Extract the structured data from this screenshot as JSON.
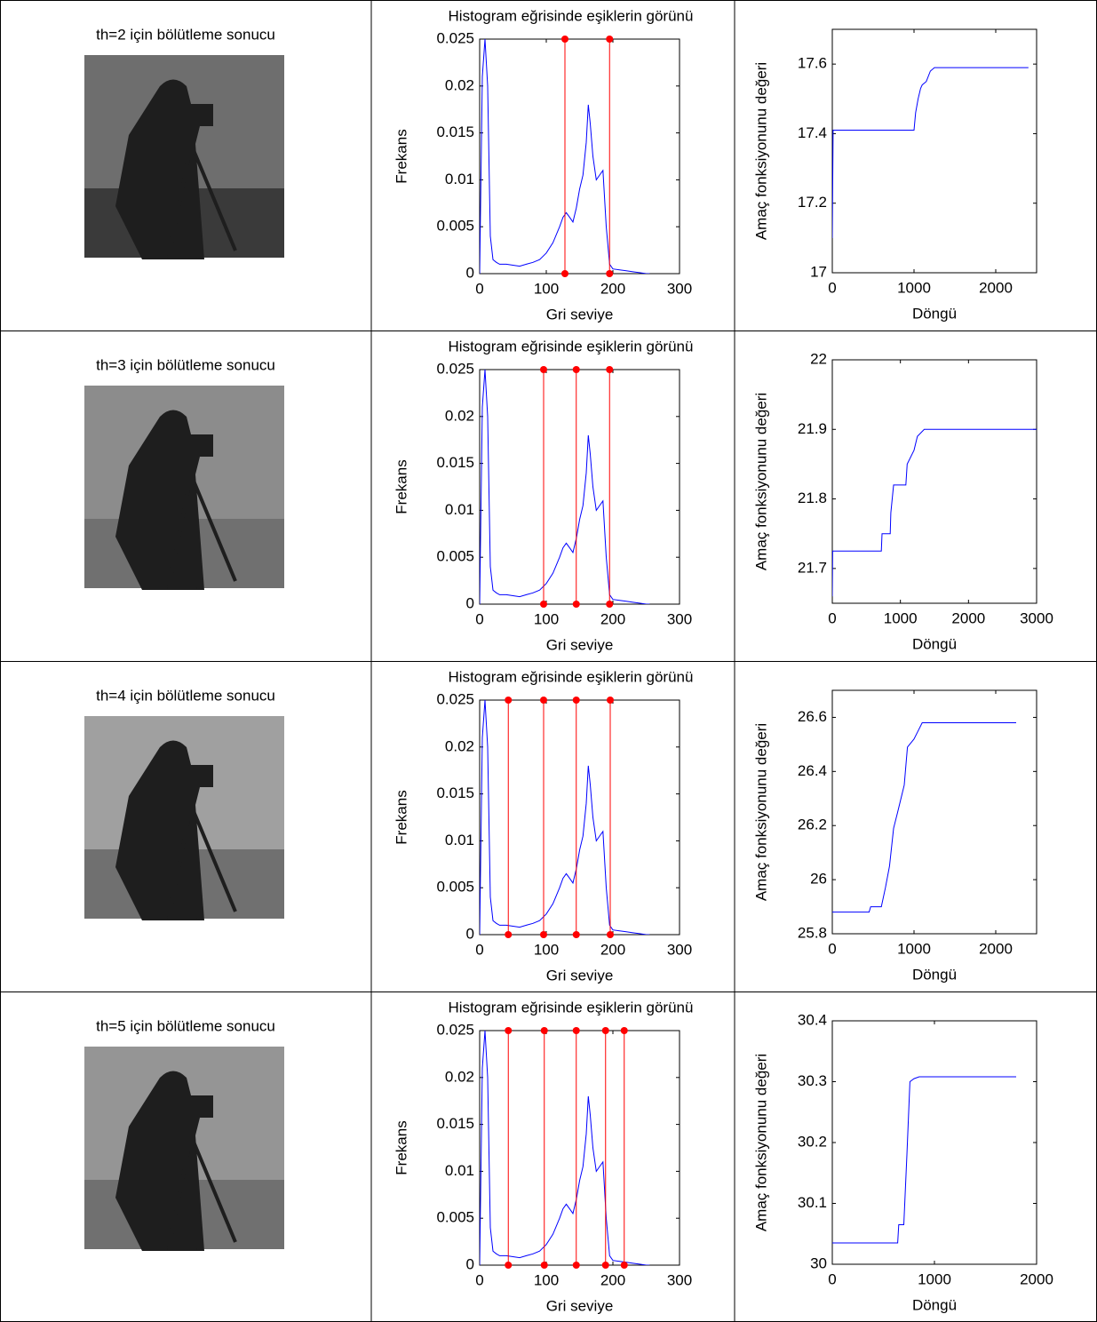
{
  "captions": [
    "th=2 için bölütleme sonucu",
    "th=3 için bölütleme sonucu",
    "th=4 için bölütleme sonucu",
    "th=5 için bölütleme sonucu"
  ],
  "chart_data": [
    {
      "type": "line",
      "title": "Histogram eğrisinde eşiklerin görünü",
      "xlabel": "Gri seviye",
      "ylabel": "Frekans",
      "x": [
        0,
        4,
        8,
        12,
        16,
        20,
        25,
        30,
        40,
        50,
        60,
        70,
        80,
        90,
        100,
        110,
        120,
        125,
        130,
        135,
        140,
        145,
        150,
        155,
        160,
        163,
        166,
        170,
        175,
        180,
        185,
        190,
        195,
        200,
        210,
        220,
        230,
        240,
        250,
        255
      ],
      "series": [
        {
          "color": "#0000ff",
          "values": [
            0,
            0.021,
            0.025,
            0.02,
            0.004,
            0.0015,
            0.0012,
            0.001,
            0.001,
            0.0009,
            0.0008,
            0.001,
            0.0012,
            0.0015,
            0.0022,
            0.0033,
            0.005,
            0.006,
            0.0065,
            0.006,
            0.0055,
            0.007,
            0.009,
            0.0105,
            0.014,
            0.018,
            0.016,
            0.0125,
            0.01,
            0.0105,
            0.011,
            0.005,
            0.001,
            0.0005,
            0.0004,
            0.0003,
            0.0002,
            0.0001,
            0,
            0
          ]
        }
      ],
      "thresholds": {
        "color": "#ff0000",
        "values": [
          128,
          195
        ]
      },
      "xlim": [
        0,
        300
      ],
      "xticks": [
        0,
        100,
        200,
        300
      ],
      "ylim": [
        0,
        0.025
      ],
      "yticks": [
        0,
        0.005,
        0.01,
        0.015,
        0.02,
        0.025
      ]
    },
    {
      "type": "line",
      "xlabel": "Döngü",
      "ylabel": "Amaç fonksiyonunu değeri",
      "x": [
        0,
        10,
        1000,
        1020,
        1050,
        1080,
        1100,
        1150,
        1200,
        1250,
        2400
      ],
      "series": [
        {
          "color": "#0000ff",
          "values": [
            17.1,
            17.41,
            17.41,
            17.46,
            17.5,
            17.53,
            17.54,
            17.55,
            17.58,
            17.59,
            17.59
          ]
        }
      ],
      "xlim": [
        0,
        2500
      ],
      "xticks": [
        0,
        1000,
        2000
      ],
      "ylim": [
        17,
        17.7
      ],
      "yticks": [
        17,
        17.2,
        17.4,
        17.6
      ]
    },
    {
      "type": "line",
      "title": "Histogram eğrisinde eşiklerin görünü",
      "xlabel": "Gri seviye",
      "ylabel": "Frekans",
      "x": [
        0,
        4,
        8,
        12,
        16,
        20,
        25,
        30,
        40,
        50,
        60,
        70,
        80,
        90,
        100,
        110,
        120,
        125,
        130,
        135,
        140,
        145,
        150,
        155,
        160,
        163,
        166,
        170,
        175,
        180,
        185,
        190,
        195,
        200,
        210,
        220,
        230,
        240,
        250,
        255
      ],
      "series": [
        {
          "color": "#0000ff",
          "values": [
            0,
            0.021,
            0.025,
            0.02,
            0.004,
            0.0015,
            0.0012,
            0.001,
            0.001,
            0.0009,
            0.0008,
            0.001,
            0.0012,
            0.0015,
            0.0022,
            0.0033,
            0.005,
            0.006,
            0.0065,
            0.006,
            0.0055,
            0.007,
            0.009,
            0.0105,
            0.014,
            0.018,
            0.016,
            0.0125,
            0.01,
            0.0105,
            0.011,
            0.005,
            0.001,
            0.0005,
            0.0004,
            0.0003,
            0.0002,
            0.0001,
            0,
            0
          ]
        }
      ],
      "thresholds": {
        "color": "#ff0000",
        "values": [
          96,
          145,
          195
        ]
      },
      "xlim": [
        0,
        300
      ],
      "xticks": [
        0,
        100,
        200,
        300
      ],
      "ylim": [
        0,
        0.025
      ],
      "yticks": [
        0,
        0.005,
        0.01,
        0.015,
        0.02,
        0.025
      ]
    },
    {
      "type": "line",
      "xlabel": "Döngü",
      "ylabel": "Amaç fonksiyonunu değeri",
      "x": [
        0,
        5,
        720,
        730,
        850,
        860,
        900,
        950,
        1080,
        1100,
        1200,
        1250,
        1350,
        3000
      ],
      "series": [
        {
          "color": "#0000ff",
          "values": [
            21.66,
            21.725,
            21.725,
            21.75,
            21.75,
            21.78,
            21.82,
            21.82,
            21.82,
            21.85,
            21.87,
            21.89,
            21.9,
            21.9
          ]
        }
      ],
      "xlim": [
        0,
        3000
      ],
      "xticks": [
        0,
        1000,
        2000,
        3000
      ],
      "ylim": [
        21.65,
        22
      ],
      "yticks": [
        21.7,
        21.8,
        21.9,
        22
      ]
    },
    {
      "type": "line",
      "title": "Histogram eğrisinde eşiklerin görünü",
      "xlabel": "Gri seviye",
      "ylabel": "Frekans",
      "x": [
        0,
        4,
        8,
        12,
        16,
        20,
        25,
        30,
        40,
        50,
        60,
        70,
        80,
        90,
        100,
        110,
        120,
        125,
        130,
        135,
        140,
        145,
        150,
        155,
        160,
        163,
        166,
        170,
        175,
        180,
        185,
        190,
        195,
        200,
        210,
        220,
        230,
        240,
        250,
        255
      ],
      "series": [
        {
          "color": "#0000ff",
          "values": [
            0,
            0.021,
            0.025,
            0.02,
            0.004,
            0.0015,
            0.0012,
            0.001,
            0.001,
            0.0009,
            0.0008,
            0.001,
            0.0012,
            0.0015,
            0.0022,
            0.0033,
            0.005,
            0.006,
            0.0065,
            0.006,
            0.0055,
            0.007,
            0.009,
            0.0105,
            0.014,
            0.018,
            0.016,
            0.0125,
            0.01,
            0.0105,
            0.011,
            0.005,
            0.001,
            0.0005,
            0.0004,
            0.0003,
            0.0002,
            0.0001,
            0,
            0
          ]
        }
      ],
      "thresholds": {
        "color": "#ff0000",
        "values": [
          43,
          96,
          145,
          196
        ]
      },
      "xlim": [
        0,
        300
      ],
      "xticks": [
        0,
        100,
        200,
        300
      ],
      "ylim": [
        0,
        0.025
      ],
      "yticks": [
        0,
        0.005,
        0.01,
        0.015,
        0.02,
        0.025
      ]
    },
    {
      "type": "line",
      "xlabel": "Döngü",
      "ylabel": "Amaç fonksiyonunu değeri",
      "x": [
        0,
        450,
        470,
        600,
        650,
        700,
        750,
        800,
        880,
        920,
        1000,
        1050,
        1100,
        2250
      ],
      "series": [
        {
          "color": "#0000ff",
          "values": [
            25.88,
            25.88,
            25.9,
            25.9,
            25.97,
            26.05,
            26.19,
            26.25,
            26.35,
            26.49,
            26.52,
            26.55,
            26.58,
            26.58
          ]
        }
      ],
      "xlim": [
        0,
        2500
      ],
      "xticks": [
        0,
        1000,
        2000
      ],
      "ylim": [
        25.8,
        26.7
      ],
      "yticks": [
        25.8,
        26,
        26.2,
        26.4,
        26.6
      ]
    },
    {
      "type": "line",
      "title": "Histogram eğrisinde eşiklerin görünü",
      "xlabel": "Gri seviye",
      "ylabel": "Frekans",
      "x": [
        0,
        4,
        8,
        12,
        16,
        20,
        25,
        30,
        40,
        50,
        60,
        70,
        80,
        90,
        100,
        110,
        120,
        125,
        130,
        135,
        140,
        145,
        150,
        155,
        160,
        163,
        166,
        170,
        175,
        180,
        185,
        190,
        195,
        200,
        210,
        220,
        230,
        240,
        250,
        255
      ],
      "series": [
        {
          "color": "#0000ff",
          "values": [
            0,
            0.021,
            0.025,
            0.02,
            0.004,
            0.0015,
            0.0012,
            0.001,
            0.001,
            0.0009,
            0.0008,
            0.001,
            0.0012,
            0.0015,
            0.0022,
            0.0033,
            0.005,
            0.006,
            0.0065,
            0.006,
            0.0055,
            0.007,
            0.009,
            0.0105,
            0.014,
            0.018,
            0.016,
            0.0125,
            0.01,
            0.0105,
            0.011,
            0.005,
            0.001,
            0.0005,
            0.0004,
            0.0003,
            0.0002,
            0.0001,
            0,
            0
          ]
        }
      ],
      "thresholds": {
        "color": "#ff0000",
        "values": [
          43,
          97,
          145,
          189,
          217
        ]
      },
      "xlim": [
        0,
        300
      ],
      "xticks": [
        0,
        100,
        200,
        300
      ],
      "ylim": [
        0,
        0.025
      ],
      "yticks": [
        0,
        0.005,
        0.01,
        0.015,
        0.02,
        0.025
      ]
    },
    {
      "type": "line",
      "xlabel": "Döngü",
      "ylabel": "Amaç fonksiyonunu değeri",
      "x": [
        0,
        640,
        650,
        700,
        730,
        760,
        800,
        850,
        1800
      ],
      "series": [
        {
          "color": "#0000ff",
          "values": [
            30.035,
            30.035,
            30.065,
            30.065,
            30.18,
            30.3,
            30.305,
            30.308,
            30.308
          ]
        }
      ],
      "xlim": [
        0,
        2000
      ],
      "xticks": [
        0,
        1000,
        2000
      ],
      "ylim": [
        30,
        30.4
      ],
      "yticks": [
        30,
        30.1,
        30.2,
        30.3,
        30.4
      ]
    }
  ]
}
